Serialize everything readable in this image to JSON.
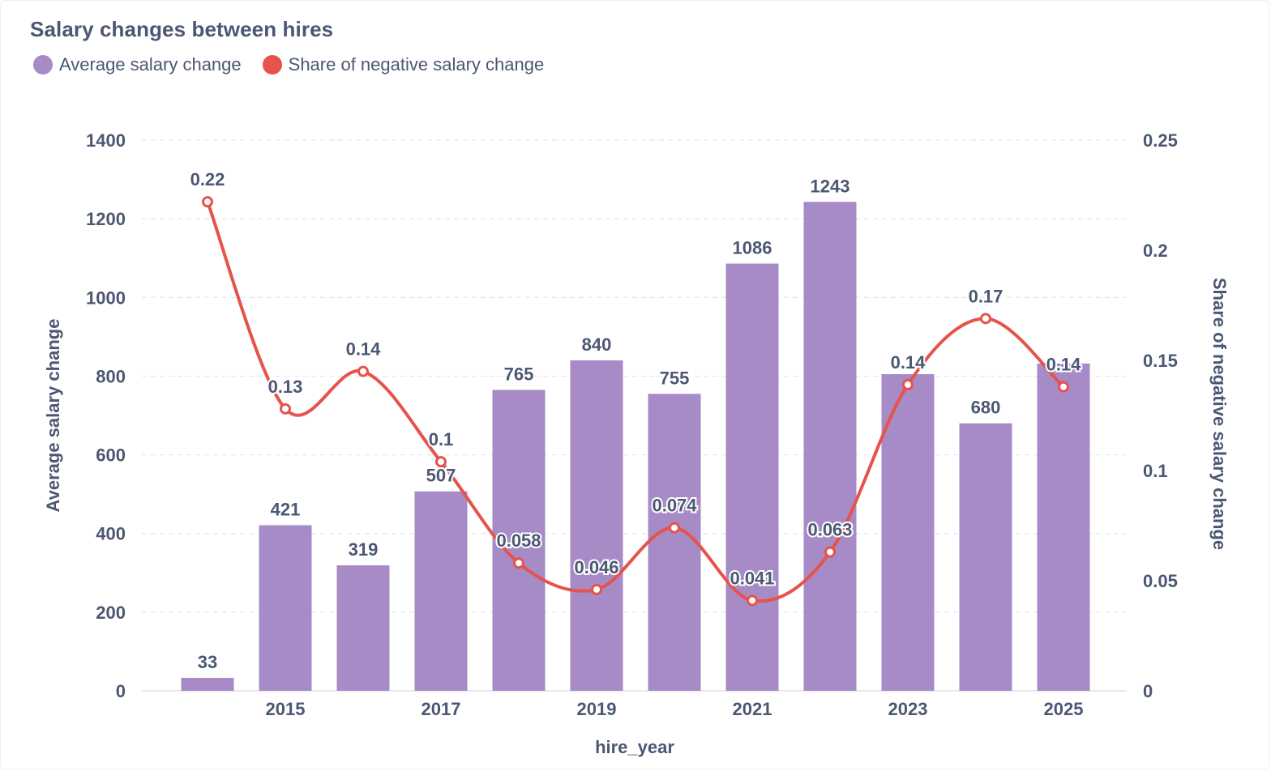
{
  "chart_data": {
    "type": "bar",
    "title": "Salary changes between hires",
    "xlabel": "hire_year",
    "ylabel": "Average salary change",
    "y2label": "Share of negative salary change",
    "categories": [
      2014,
      2015,
      2016,
      2017,
      2018,
      2019,
      2020,
      2021,
      2022,
      2023,
      2024,
      2025
    ],
    "x_tick_labels": [
      "2015",
      "2017",
      "2019",
      "2021",
      "2023",
      "2025"
    ],
    "ylim": [
      0,
      1400
    ],
    "y_ticks": [
      0,
      200,
      400,
      600,
      800,
      1000,
      1200,
      1400
    ],
    "y2lim": [
      0,
      0.25
    ],
    "y2_ticks": [
      "0",
      "0.05",
      "0.1",
      "0.15",
      "0.2",
      "0.25"
    ],
    "series": [
      {
        "name": "Average salary change",
        "type": "bar",
        "axis": "left",
        "color": "#a78bc6",
        "values": [
          33,
          421,
          319,
          507,
          765,
          840,
          755,
          1086,
          1243,
          805,
          680,
          832
        ],
        "labels": [
          "33",
          "421",
          "319",
          "507",
          "765",
          "840",
          "755",
          "1086",
          "1243",
          "",
          "680",
          ""
        ]
      },
      {
        "name": "Share of negative salary change",
        "type": "line",
        "axis": "right",
        "color": "#e5534b",
        "values": [
          0.222,
          0.128,
          0.145,
          0.104,
          0.058,
          0.046,
          0.074,
          0.041,
          0.063,
          0.139,
          0.169,
          0.138
        ],
        "labels": [
          "0.22",
          "0.13",
          "0.14",
          "0.1",
          "0.058",
          "0.046",
          "0.074",
          "0.041",
          "0.063",
          "0.14",
          "0.17",
          "0.14"
        ]
      }
    ],
    "grid": true,
    "legend": "top-left"
  }
}
